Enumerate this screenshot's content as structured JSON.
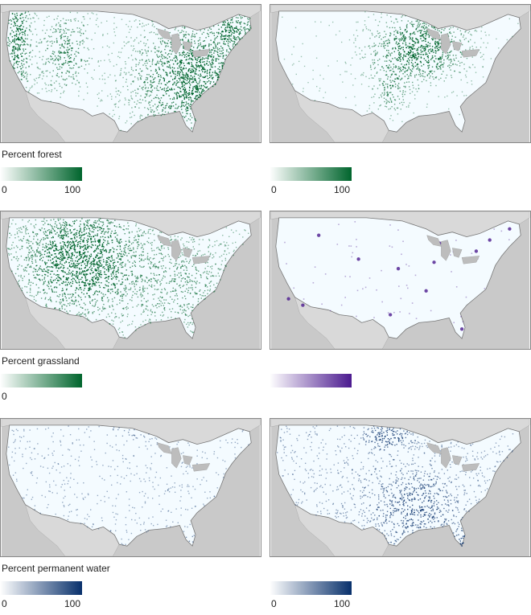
{
  "maps": [
    {
      "id": "forest",
      "title": "Percent forest",
      "legend_min": "0",
      "legend_max": "100",
      "colors": [
        "#ffffff",
        "#00652d"
      ],
      "highlight": "forest-east-west"
    },
    {
      "id": "cropland",
      "title": "",
      "legend_min": "0",
      "legend_max": "100",
      "colors": [
        "#ffffff",
        "#00652d"
      ],
      "highlight": "cropland-midwest"
    },
    {
      "id": "grassland",
      "title": "Percent grassland",
      "legend_min": "0",
      "legend_max": "",
      "colors": [
        "#ffffff",
        "#00652d"
      ],
      "highlight": "grassland-west"
    },
    {
      "id": "developed",
      "title": "",
      "legend_min": "",
      "legend_max": "",
      "colors": [
        "#ffffff",
        "#4b1a8f"
      ],
      "highlight": "developed-cities"
    },
    {
      "id": "permanent-water",
      "title": "Percent permanent water",
      "legend_min": "0",
      "legend_max": "100",
      "colors": [
        "#ffffff",
        "#08306b"
      ],
      "highlight": "water-scattered"
    },
    {
      "id": "wetland",
      "title": "",
      "legend_min": "0",
      "legend_max": "100",
      "colors": [
        "#ffffff",
        "#08306b"
      ],
      "highlight": "wetland-southeast"
    }
  ],
  "colors": {
    "background_land": "#d9d9d9",
    "ocean": "#c9c9c9",
    "border": "#888888"
  }
}
